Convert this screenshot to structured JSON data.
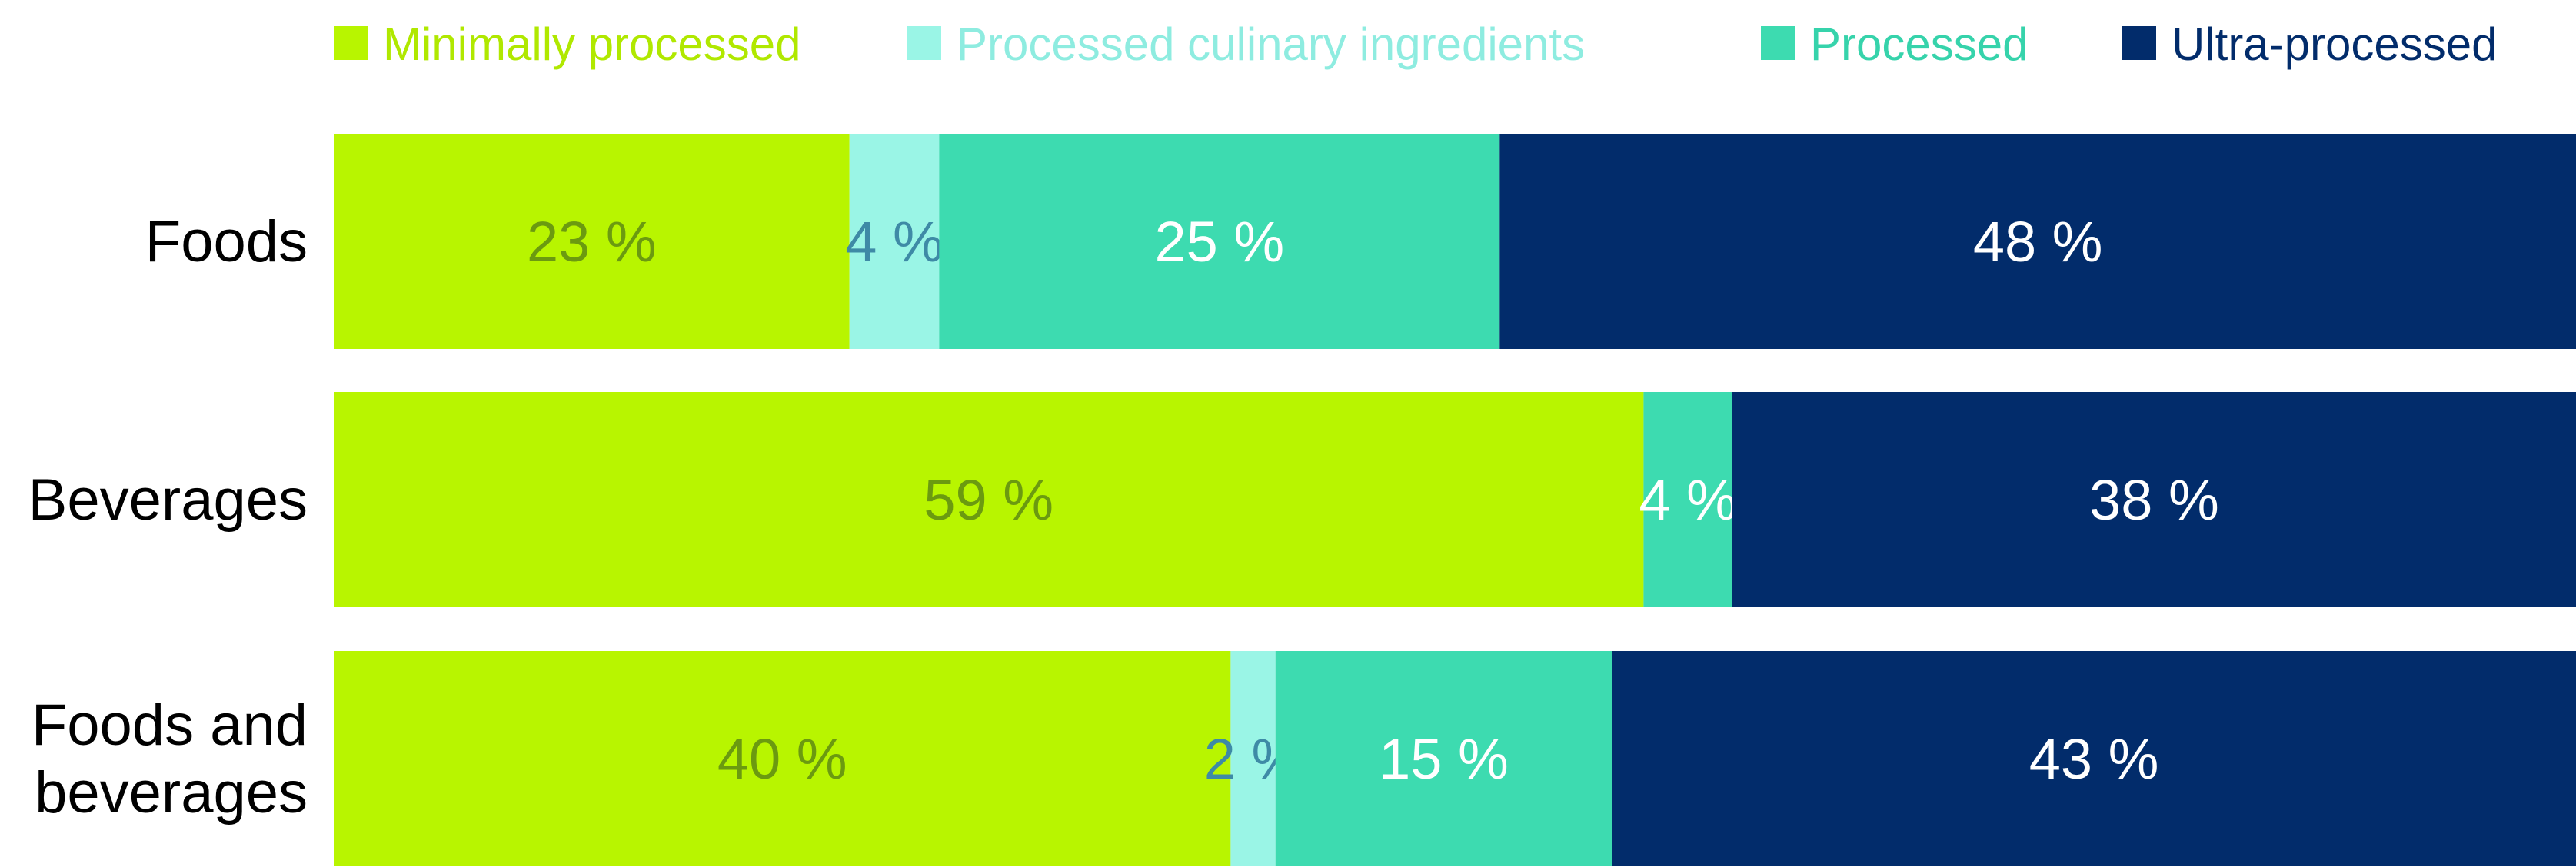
{
  "chart_data": {
    "type": "bar",
    "orientation": "horizontal",
    "stacked": true,
    "normalized_percent": true,
    "categories": [
      "Foods",
      "Beverages",
      "Foods and beverages"
    ],
    "category_lines": [
      [
        "Foods"
      ],
      [
        "Beverages"
      ],
      [
        "Foods and",
        "beverages"
      ]
    ],
    "series": [
      {
        "name": "Minimally processed",
        "color": "#b8f500",
        "label_color": "#6b9a10",
        "values": [
          23,
          59,
          40
        ],
        "labels": [
          "23 %",
          "59 %",
          "40 %"
        ]
      },
      {
        "name": "Processed culinary ingredients",
        "color": "#9af5e6",
        "label_color": "#3e8aa6",
        "values": [
          4,
          0,
          2
        ],
        "labels": [
          "4 %",
          "",
          "2 %"
        ]
      },
      {
        "name": "Processed",
        "color": "#3ddbb0",
        "label_color": "#ffffff",
        "values": [
          25,
          4,
          15
        ],
        "labels": [
          "25 %",
          "4 %",
          "15 %"
        ]
      },
      {
        "name": "Ultra-processed",
        "color": "#022c6b",
        "label_color": "#ffffff",
        "values": [
          48,
          38,
          43
        ],
        "labels": [
          "48 %",
          "38 %",
          "43 %"
        ]
      }
    ],
    "legend_position": "top",
    "grid": false
  }
}
